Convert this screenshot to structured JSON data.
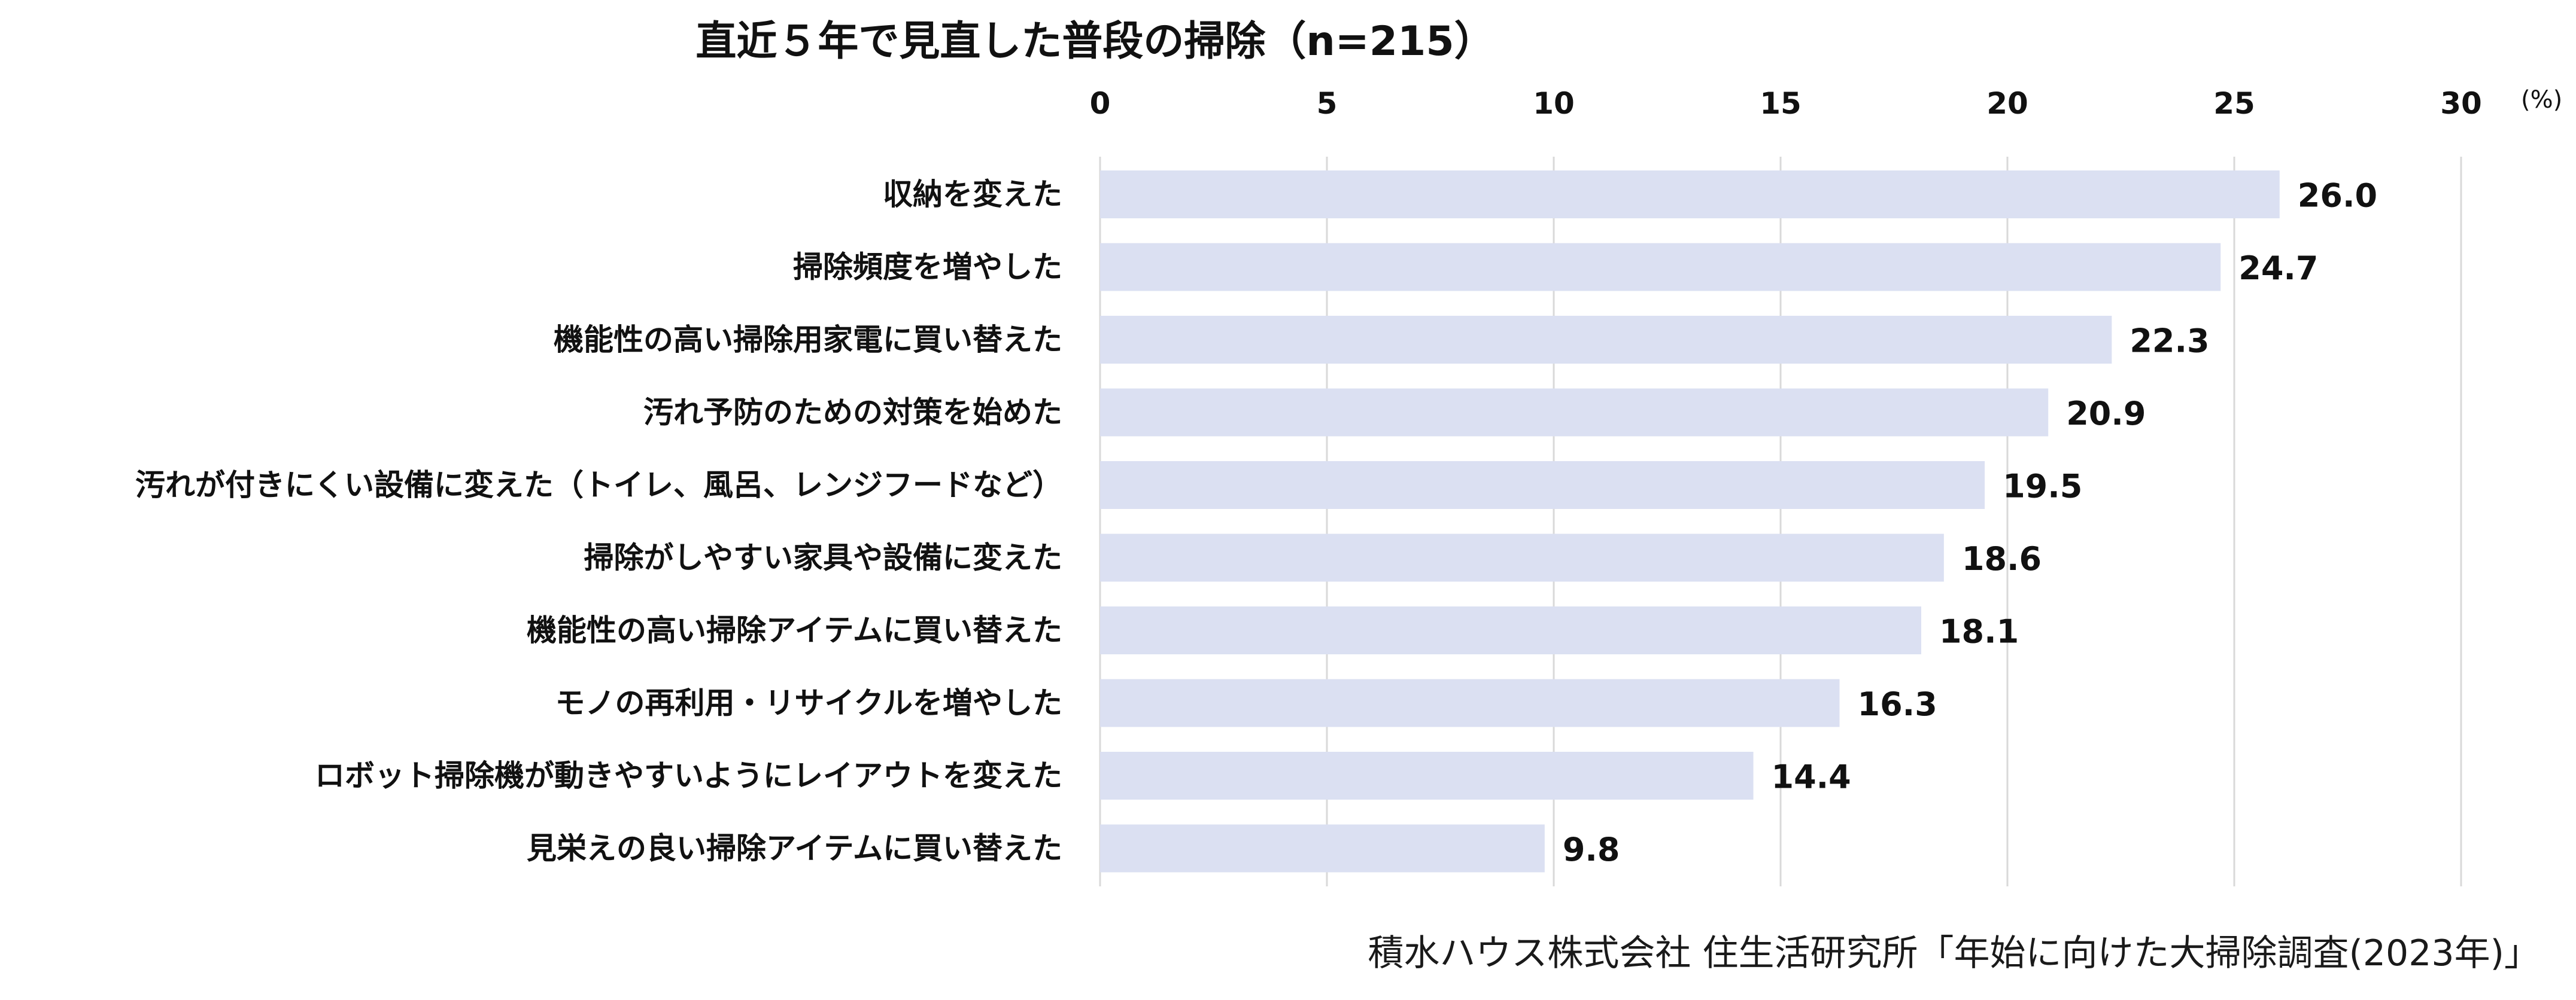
{
  "chart_data": {
    "type": "bar",
    "orientation": "horizontal",
    "title": "直近５年で見直した普段の掃除（n=215）",
    "unit": "(%)",
    "xlim": [
      0,
      30
    ],
    "ticks": [
      "0",
      "5",
      "10",
      "15",
      "20",
      "25",
      "30"
    ],
    "tick_values": [
      0,
      5,
      10,
      15,
      20,
      25,
      30
    ],
    "grid": true,
    "bar_color": "#dbe0f2",
    "grid_color": "#d9d9d9",
    "categories": [
      "収納を変えた",
      "掃除頻度を増やした",
      "機能性の高い掃除用家電に買い替えた",
      "汚れ予防のための対策を始めた",
      "汚れが付きにくい設備に変えた（トイレ、風呂、レンジフードなど）",
      "掃除がしやすい家具や設備に変えた",
      "機能性の高い掃除アイテムに買い替えた",
      "モノの再利用・リサイクルを増やした",
      "ロボット掃除機が動きやすいようにレイアウトを変えた",
      "見栄えの良い掃除アイテムに買い替えた"
    ],
    "values": [
      26.0,
      24.7,
      22.3,
      20.9,
      19.5,
      18.6,
      18.1,
      16.3,
      14.4,
      9.8
    ],
    "value_labels": [
      "26.0",
      "24.7",
      "22.3",
      "20.9",
      "19.5",
      "18.6",
      "18.1",
      "16.3",
      "14.4",
      "9.8"
    ]
  },
  "source": "積水ハウス株式会社 住生活研究所「年始に向けた大掃除調査(2023年)」"
}
